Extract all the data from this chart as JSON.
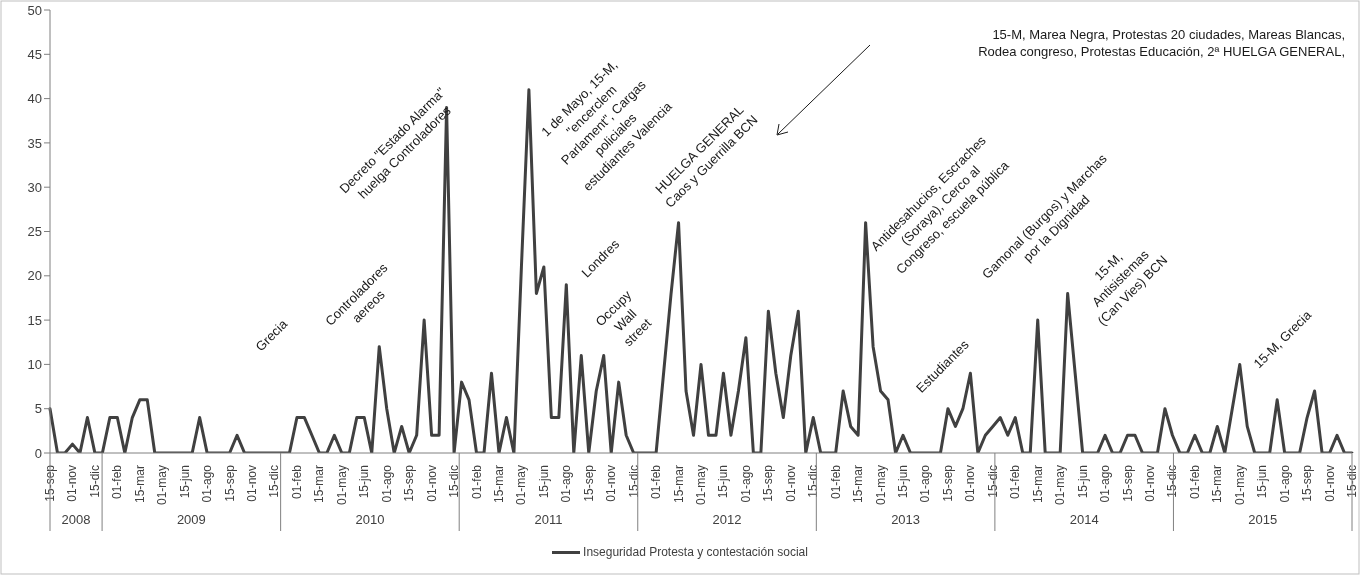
{
  "chart_data": {
    "type": "line",
    "categories": [
      "15-sep",
      null,
      null,
      "01-nov",
      null,
      null,
      "15-dic",
      null,
      null,
      "01-feb",
      null,
      null,
      "15-mar",
      null,
      null,
      "01-may",
      null,
      null,
      "15-jun",
      null,
      null,
      "01-ago",
      null,
      null,
      "15-sep",
      null,
      null,
      "01-nov",
      null,
      null,
      "15-dic",
      null,
      null,
      "01-feb",
      null,
      null,
      "15-mar",
      null,
      null,
      "01-may",
      null,
      null,
      "15-jun",
      null,
      null,
      "01-ago",
      null,
      null,
      "15-sep",
      null,
      null,
      "01-nov",
      null,
      null,
      "15-dic",
      null,
      null,
      "01-feb",
      null,
      null,
      "15-mar",
      null,
      null,
      "01-may",
      null,
      null,
      "15-jun",
      null,
      null,
      "01-ago",
      null,
      null,
      "15-sep",
      null,
      null,
      "01-nov",
      null,
      null,
      "15-dic",
      null,
      null,
      "01-feb",
      null,
      null,
      "15-mar",
      null,
      null,
      "01-may",
      null,
      null,
      "15-jun",
      null,
      null,
      "01-ago",
      null,
      null,
      "15-sep",
      null,
      null,
      "01-nov",
      null,
      null,
      "15-dic",
      null,
      null,
      "01-feb",
      null,
      null,
      "15-mar",
      null,
      null,
      "01-may",
      null,
      null,
      "15-jun",
      null,
      null,
      "01-ago",
      null,
      null,
      "15-sep",
      null,
      null,
      "01-nov",
      null,
      null,
      "15-dic",
      null,
      null,
      "01-feb",
      null,
      null,
      "15-mar",
      null,
      null,
      "01-may",
      null,
      null,
      "15-jun",
      null,
      null,
      "01-ago",
      null,
      null,
      "15-sep",
      null,
      null,
      "01-nov",
      null,
      null,
      "15-dic",
      null,
      null,
      "01-feb",
      null,
      null,
      "15-mar",
      null,
      null,
      "01-may",
      null,
      null,
      "15-jun",
      null,
      null,
      "01-ago",
      null,
      null,
      "15-sep",
      null,
      null,
      "01-nov",
      null,
      null,
      "15-dic"
    ],
    "series": [
      {
        "name": "Inseguridad  Protesta y contestación social",
        "color": "#404040",
        "values": [
          5,
          0,
          0,
          1,
          0,
          4,
          0,
          0,
          4,
          4,
          0,
          4,
          6,
          6,
          0,
          0,
          0,
          0,
          0,
          0,
          4,
          0,
          0,
          0,
          0,
          2,
          0,
          0,
          0,
          0,
          0,
          0,
          0,
          4,
          4,
          2,
          0,
          0,
          2,
          0,
          0,
          4,
          4,
          0,
          12,
          5,
          0,
          3,
          0,
          2,
          15,
          2,
          2,
          39,
          0,
          8,
          6,
          0,
          0,
          9,
          0,
          4,
          0,
          21,
          41,
          18,
          21,
          4,
          4,
          19,
          0,
          11,
          0,
          7,
          11,
          0,
          8,
          2,
          0,
          0,
          0,
          0,
          9,
          18,
          26,
          7,
          2,
          10,
          2,
          2,
          9,
          2,
          7,
          13,
          0,
          0,
          16,
          9,
          4,
          11,
          16,
          0,
          4,
          0,
          0,
          0,
          7,
          3,
          2,
          26,
          12,
          7,
          6,
          0,
          2,
          0,
          0,
          0,
          0,
          0,
          5,
          3,
          5,
          9,
          0,
          2,
          3,
          4,
          2,
          4,
          0,
          0,
          15,
          0,
          0,
          0,
          18,
          9,
          0,
          0,
          0,
          2,
          0,
          0,
          2,
          2,
          0,
          0,
          0,
          5,
          2,
          0,
          0,
          2,
          0,
          0,
          3,
          0,
          5,
          10,
          3,
          0,
          0,
          0,
          6,
          0,
          0,
          0,
          4,
          7,
          0,
          0,
          2,
          0,
          0
        ]
      }
    ],
    "ylim": [
      0,
      50
    ],
    "yticks": [
      0,
      5,
      10,
      15,
      20,
      25,
      30,
      35,
      40,
      45,
      50
    ],
    "marker": "none",
    "legend": "bottom",
    "annotations": [
      "2008",
      "2009",
      "2010",
      "2011",
      "2012",
      "2013",
      "2014",
      "2015",
      "Grecia",
      "Controladores\naereos",
      "Decreto \"Estado Alarma\"\nhuelga Controladores",
      "1 de Mayo, 15-M,\n\"encerclem\nParlament\", Cargas\npoliciales\nestudiantes Valencia",
      "Londres",
      "Occupy\nWall\nstreet",
      "HUELGA GENERAL\nCaos y Guerrilla BCN",
      "15-M, Marea Negra, Protestas 20 ciudades, Mareas Blancas,\nRodea congreso, Protestas Educación, 2ª HUELGA GENERAL,",
      "Antidesahucios, Escraches\n(Soraya), Cerco al\nCongreso, escuela pública",
      "Estudiantes",
      "Gamonal (Burgos) y Marchas\npor la Dignidad",
      "15-M,\nAntisistemas\n(Can Vies) BCN",
      "15-M, Grecia"
    ]
  }
}
